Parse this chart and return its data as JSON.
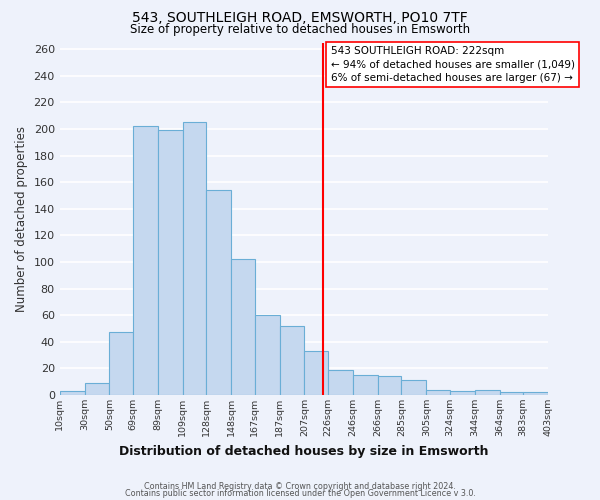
{
  "title": "543, SOUTHLEIGH ROAD, EMSWORTH, PO10 7TF",
  "subtitle": "Size of property relative to detached houses in Emsworth",
  "xlabel": "Distribution of detached houses by size in Emsworth",
  "ylabel": "Number of detached properties",
  "tick_labels": [
    "10sqm",
    "30sqm",
    "50sqm",
    "69sqm",
    "89sqm",
    "109sqm",
    "128sqm",
    "148sqm",
    "167sqm",
    "187sqm",
    "207sqm",
    "226sqm",
    "246sqm",
    "266sqm",
    "285sqm",
    "305sqm",
    "324sqm",
    "344sqm",
    "364sqm",
    "383sqm",
    "403sqm"
  ],
  "tick_positions": [
    10,
    30,
    50,
    69,
    89,
    109,
    128,
    148,
    167,
    187,
    207,
    226,
    246,
    266,
    285,
    305,
    324,
    344,
    364,
    383,
    403
  ],
  "bar_heights": [
    3,
    9,
    47,
    202,
    199,
    205,
    154,
    102,
    60,
    52,
    33,
    19,
    15,
    14,
    11,
    4,
    3,
    4,
    2,
    2
  ],
  "bar_color": "#c5d8ef",
  "bar_edge_color": "#6aaed6",
  "vline_x": 222,
  "vline_color": "red",
  "annotation_line1": "543 SOUTHLEIGH ROAD: 222sqm",
  "annotation_line2": "← 94% of detached houses are smaller (1,049)",
  "annotation_line3": "6% of semi-detached houses are larger (67) →",
  "ylim": [
    0,
    265
  ],
  "yticks": [
    0,
    20,
    40,
    60,
    80,
    100,
    120,
    140,
    160,
    180,
    200,
    220,
    240,
    260
  ],
  "background_color": "#eef2fb",
  "grid_color": "#ffffff",
  "footer1": "Contains HM Land Registry data © Crown copyright and database right 2024.",
  "footer2": "Contains public sector information licensed under the Open Government Licence v 3.0."
}
